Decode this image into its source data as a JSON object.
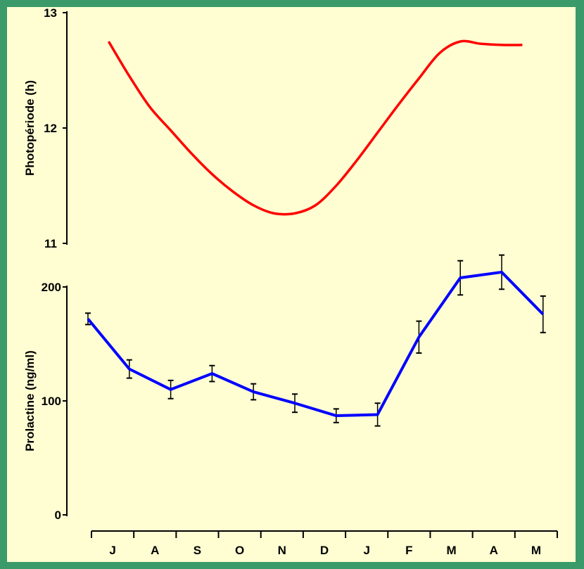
{
  "chart_data": [
    {
      "type": "line",
      "ylabel": "Photopériode (h)",
      "ylim": [
        11,
        13
      ],
      "yticks": [
        "11",
        "12",
        "13"
      ],
      "categories": [
        "J",
        "A",
        "S",
        "O",
        "N",
        "D",
        "J",
        "F",
        "M",
        "A",
        "M"
      ],
      "series": [
        {
          "color": "#ff0000",
          "x": [
            0.5,
            1.0,
            1.5,
            2.0,
            2.5,
            3.0,
            3.5,
            4.0,
            4.5,
            5.0,
            5.5,
            6.0,
            6.5,
            7.0,
            7.5,
            8.0,
            8.5,
            9.0,
            9.5,
            10.0,
            10.5
          ],
          "values": [
            12.75,
            12.45,
            12.18,
            11.98,
            11.78,
            11.6,
            11.45,
            11.33,
            11.26,
            11.26,
            11.33,
            11.5,
            11.72,
            11.96,
            12.2,
            12.43,
            12.65,
            12.75,
            12.73,
            12.72,
            12.72
          ]
        }
      ]
    },
    {
      "type": "line",
      "ylabel": "Prolactine (ng/ml)",
      "ylim": [
        0,
        200
      ],
      "yticks": [
        "0",
        "100",
        "200"
      ],
      "categories": [
        "J",
        "A",
        "S",
        "O",
        "N",
        "D",
        "J",
        "F",
        "M",
        "A",
        "M"
      ],
      "series": [
        {
          "color": "#0000ff",
          "x": [
            0,
            1,
            2,
            3,
            4,
            5,
            6,
            7,
            8,
            9,
            10,
            11
          ],
          "values": [
            172,
            128,
            110,
            124,
            108,
            98,
            87,
            88,
            156,
            208,
            213,
            176
          ],
          "errors": [
            5,
            8,
            8,
            7,
            7,
            8,
            6,
            10,
            14,
            15,
            15,
            16
          ]
        }
      ]
    }
  ]
}
